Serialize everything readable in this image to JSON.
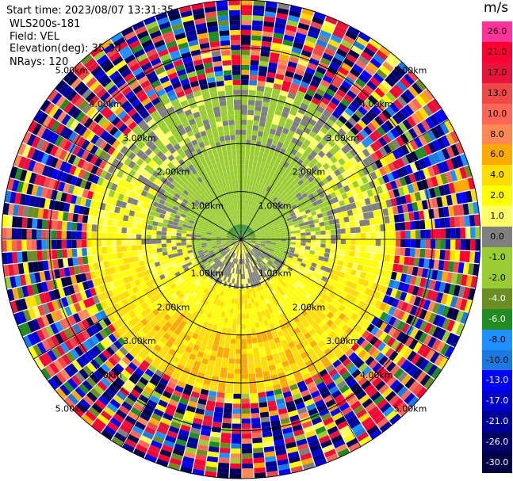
{
  "info": {
    "start_time": "Start time: 2023/08/07 13:31:35",
    "site": "WLS200s-181",
    "field": "Field: VEL",
    "elevation": "Elevation(deg): 35.30",
    "nrays": "NRays: 120"
  },
  "colorbar": {
    "unit": "m/s",
    "levels": [
      {
        "label": "26.0",
        "color": "#ff3399"
      },
      {
        "label": "21.0",
        "color": "#ff0033"
      },
      {
        "label": "17.0",
        "color": "#e8133a"
      },
      {
        "label": "13.0",
        "color": "#f04848"
      },
      {
        "label": "10.0",
        "color": "#ff6655"
      },
      {
        "label": "8.0",
        "color": "#ff8855"
      },
      {
        "label": "6.0",
        "color": "#ffaa00"
      },
      {
        "label": "4.0",
        "color": "#ffdd00"
      },
      {
        "label": "2.0",
        "color": "#ffff00"
      },
      {
        "label": "1.0",
        "color": "#ffff66"
      },
      {
        "label": "0.0",
        "color": "#808080"
      },
      {
        "label": "-1.0",
        "color": "#9acd32"
      },
      {
        "label": "-2.0",
        "color": "#99cc33"
      },
      {
        "label": "-4.0",
        "color": "#6b8e23"
      },
      {
        "label": "-6.0",
        "color": "#228b22"
      },
      {
        "label": "-8.0",
        "color": "#1e90ff"
      },
      {
        "label": "-10.0",
        "color": "#1a7ae0"
      },
      {
        "label": "-13.0",
        "color": "#0000ff"
      },
      {
        "label": "-17.0",
        "color": "#0000cc"
      },
      {
        "label": "-21.0",
        "color": "#000099"
      },
      {
        "label": "-26.0",
        "color": "#000066"
      },
      {
        "label": "-30.0",
        "color": "#000044"
      }
    ]
  },
  "chart_data": {
    "type": "heatmap",
    "projection": "polar-ppi",
    "field": "VEL",
    "unit": "m/s",
    "nrays": 120,
    "range_ring_labels_km": [
      "1.00km",
      "2.00km",
      "3.00km",
      "4.00km",
      "5.00km"
    ],
    "range_rings_km": [
      1,
      2,
      3,
      4,
      5
    ],
    "max_range_km": 5.0,
    "azimuth_lines_deg": [
      0,
      30,
      60,
      90,
      120,
      150,
      180,
      210,
      240,
      270,
      300,
      330
    ],
    "approx_velocity_by_range_km": [
      {
        "range_km": [
          0.0,
          0.3
        ],
        "value_range": [
          -6.0,
          2.0
        ]
      },
      {
        "range_km": [
          0.3,
          1.0
        ],
        "value_range": [
          -2.0,
          1.0
        ]
      },
      {
        "range_km": [
          1.0,
          2.0
        ],
        "value_range": [
          -2.0,
          4.0
        ]
      },
      {
        "range_km": [
          2.0,
          3.2
        ],
        "value_range": [
          -1.0,
          6.0
        ]
      },
      {
        "range_km": [
          3.2,
          5.0
        ],
        "value_range": [
          -30.0,
          26.0
        ]
      }
    ]
  }
}
